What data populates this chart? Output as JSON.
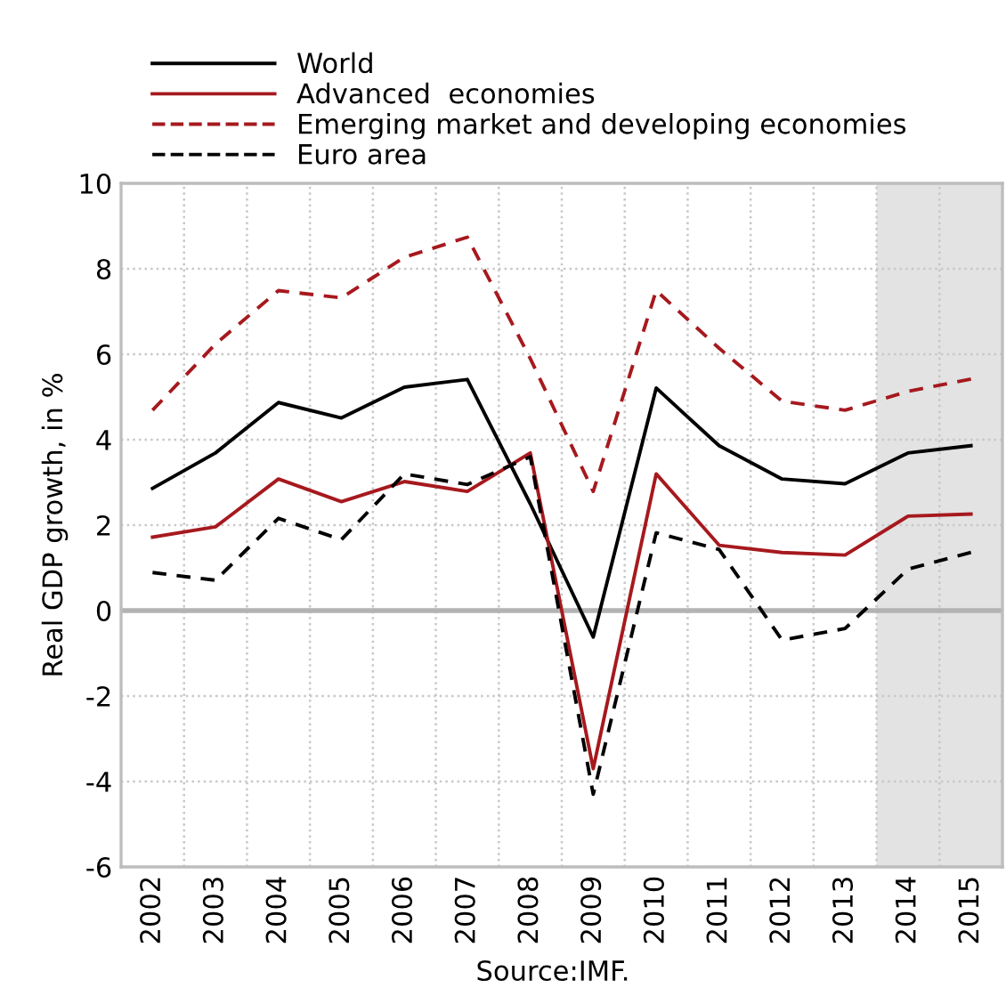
{
  "chart_data": {
    "type": "line",
    "categories": [
      "2002",
      "2003",
      "2004",
      "2005",
      "2006",
      "2007",
      "2008",
      "2009",
      "2010",
      "2011",
      "2012",
      "2013",
      "2014",
      "2015"
    ],
    "series": [
      {
        "name": "World",
        "color": "#000000",
        "line_style": "solid",
        "values": [
          2.86,
          3.69,
          4.87,
          4.51,
          5.23,
          5.41,
          2.5,
          -0.62,
          5.21,
          3.86,
          3.08,
          2.97,
          3.69,
          3.86
        ]
      },
      {
        "name": "Advanced  economies",
        "color": "#a6191e",
        "line_style": "solid",
        "values": [
          1.72,
          1.96,
          3.08,
          2.55,
          3.02,
          2.79,
          3.69,
          -3.7,
          3.2,
          1.53,
          1.36,
          1.3,
          2.21,
          2.26
        ]
      },
      {
        "name": "Emerging market and developing economies",
        "color": "#a6191e",
        "line_style": "dashed",
        "values": [
          4.69,
          6.24,
          7.49,
          7.32,
          8.27,
          8.74,
          5.9,
          2.79,
          7.49,
          6.14,
          4.9,
          4.69,
          5.13,
          5.42
        ]
      },
      {
        "name": "Euro area",
        "color": "#000000",
        "line_style": "dashed",
        "values": [
          0.89,
          0.71,
          2.16,
          1.66,
          3.2,
          2.95,
          3.6,
          -4.3,
          1.82,
          1.43,
          -0.69,
          -0.42,
          0.97,
          1.36
        ]
      }
    ],
    "ylabel": "Real GDP growth, in %",
    "ylim": [
      -6,
      10
    ],
    "yticks": [
      -6,
      -4,
      -2,
      0,
      2,
      4,
      6,
      8,
      10
    ],
    "grid": true,
    "legend": "top left",
    "marker": "none",
    "ref_lines": [
      {
        "axis": "y",
        "value": 0,
        "color": "#b3b3b3"
      }
    ],
    "bands": [
      {
        "axis": "x",
        "from": "2014",
        "to": "2015",
        "color": "#e3e3e3"
      }
    ],
    "annotations": [
      "Source:IMF."
    ]
  }
}
